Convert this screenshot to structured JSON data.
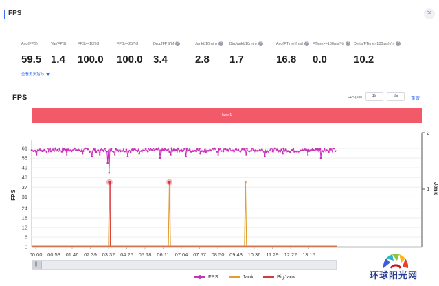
{
  "header": {
    "title": "FPS",
    "close_icon": "close-icon"
  },
  "metrics": [
    {
      "label": "Avg(FPS)",
      "value": "59.5",
      "help": false
    },
    {
      "label": "Var(FPS)",
      "value": "1.4",
      "help": false
    },
    {
      "label": "FPS>=18[%]",
      "value": "100.0",
      "help": false
    },
    {
      "label": "FPS>=25[%]",
      "value": "100.0",
      "help": false
    },
    {
      "label": "Drop[FPS/h]",
      "value": "3.4",
      "help": true
    },
    {
      "label": "Jank(/10min)",
      "value": "2.8",
      "help": true
    },
    {
      "label": "BigJank(/10min)",
      "value": "1.7",
      "help": true
    },
    {
      "label": "Avg(FTime)[ms]",
      "value": "16.8",
      "help": true
    },
    {
      "label": "FTime>=100ms[%]",
      "value": "0.0",
      "help": true
    },
    {
      "label": "Delta(FTime>100ms)[/h]",
      "value": "10.2",
      "help": true
    }
  ],
  "more_link": "查看更多指标",
  "chart_section": {
    "title": "FPS",
    "fps_ctrl_label": "FPS(>=)",
    "threshold_1": "18",
    "threshold_2": "25",
    "reset_label": "重置",
    "band_label": "label1"
  },
  "chart_data": {
    "type": "line",
    "x_ticks": [
      "00:00",
      "00:53",
      "01:46",
      "02:39",
      "03:32",
      "04:25",
      "05:18",
      "06:11",
      "07:04",
      "07:57",
      "08:50",
      "09:43",
      "10:36",
      "11:29",
      "12:22",
      "13:15"
    ],
    "x_range_seconds": [
      0,
      850
    ],
    "y_left": {
      "label": "FPS",
      "ticks": [
        0,
        6,
        12,
        18,
        24,
        31,
        37,
        43,
        49,
        55,
        61
      ],
      "range": [
        0,
        64
      ]
    },
    "y_right": {
      "label": "Jank",
      "ticks": [
        1,
        2
      ],
      "range": [
        0,
        2.1
      ]
    },
    "fps_baseline": 60,
    "fps_dips": [
      {
        "t": 14,
        "fps": 57
      },
      {
        "t": 45,
        "fps": 58
      },
      {
        "t": 98,
        "fps": 57
      },
      {
        "t": 142,
        "fps": 58
      },
      {
        "t": 168,
        "fps": 56
      },
      {
        "t": 190,
        "fps": 57
      },
      {
        "t": 212,
        "fps": 52
      },
      {
        "t": 216,
        "fps": 46
      },
      {
        "t": 232,
        "fps": 57
      },
      {
        "t": 268,
        "fps": 56
      },
      {
        "t": 300,
        "fps": 58
      },
      {
        "t": 358,
        "fps": 55
      },
      {
        "t": 388,
        "fps": 57
      },
      {
        "t": 430,
        "fps": 56
      },
      {
        "t": 470,
        "fps": 58
      },
      {
        "t": 520,
        "fps": 57
      },
      {
        "t": 598,
        "fps": 57
      },
      {
        "t": 650,
        "fps": 56
      },
      {
        "t": 700,
        "fps": 58
      },
      {
        "t": 770,
        "fps": 57
      },
      {
        "t": 806,
        "fps": 55
      },
      {
        "t": 835,
        "fps": 58
      }
    ],
    "series": [
      {
        "name": "FPS",
        "color": "#c832b8"
      },
      {
        "name": "Jank",
        "color": "#e0a030",
        "events": [
          {
            "t": 217,
            "value": 1
          },
          {
            "t": 384,
            "value": 1
          },
          {
            "t": 596,
            "value": 1
          }
        ]
      },
      {
        "name": "BigJank",
        "color": "#d9363e",
        "events": [
          {
            "t": 217,
            "value": 1
          },
          {
            "t": 384,
            "value": 1
          }
        ]
      }
    ]
  },
  "watermark": {
    "text": "环球阳光网"
  }
}
